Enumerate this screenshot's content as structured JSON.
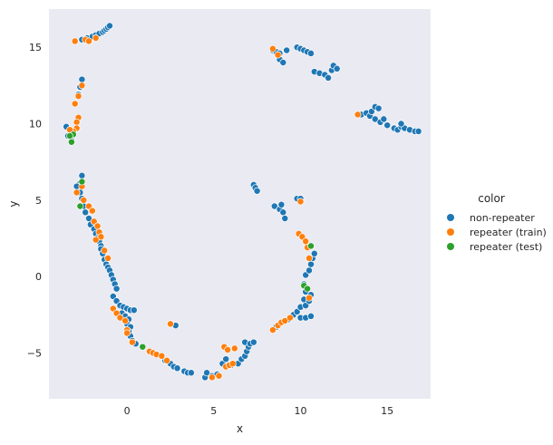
{
  "chart_data": {
    "type": "scatter",
    "xlabel": "x",
    "ylabel": "y",
    "xlim": [
      -4.5,
      17.5
    ],
    "ylim": [
      -8.0,
      17.5
    ],
    "xticks": [
      0,
      5,
      10,
      15
    ],
    "yticks": [
      -5,
      0,
      5,
      10,
      15
    ],
    "grid": false,
    "background": "#eaeaf2",
    "legend": {
      "title": "color",
      "placement": "outside-right",
      "entries": [
        "non-repeater",
        "repeater (train)",
        "repeater (test)"
      ]
    },
    "series": [
      {
        "name": "non-repeater",
        "color": "#1f77b4",
        "points": [
          [
            -2.6,
            15.5
          ],
          [
            -2.3,
            15.6
          ],
          [
            -2.0,
            15.7
          ],
          [
            -1.8,
            15.8
          ],
          [
            -1.6,
            15.9
          ],
          [
            -1.4,
            16.0
          ],
          [
            -1.3,
            16.1
          ],
          [
            -1.2,
            16.2
          ],
          [
            -1.1,
            16.3
          ],
          [
            -1.0,
            16.4
          ],
          [
            -2.6,
            12.9
          ],
          [
            -2.7,
            12.4
          ],
          [
            -2.8,
            11.9
          ],
          [
            -3.5,
            9.8
          ],
          [
            -3.4,
            9.2
          ],
          [
            -3.2,
            8.9
          ],
          [
            -2.6,
            6.6
          ],
          [
            -2.7,
            6.1
          ],
          [
            -2.9,
            5.9
          ],
          [
            -2.7,
            5.5
          ],
          [
            -2.6,
            5.1
          ],
          [
            -2.5,
            4.6
          ],
          [
            -2.4,
            4.2
          ],
          [
            -2.2,
            3.8
          ],
          [
            -2.1,
            3.4
          ],
          [
            -1.9,
            3.1
          ],
          [
            -1.8,
            2.8
          ],
          [
            -1.7,
            2.5
          ],
          [
            -1.6,
            2.3
          ],
          [
            -1.5,
            2.0
          ],
          [
            -1.5,
            1.8
          ],
          [
            -1.4,
            1.5
          ],
          [
            -1.3,
            1.1
          ],
          [
            -1.2,
            0.8
          ],
          [
            -1.1,
            0.6
          ],
          [
            -1.0,
            0.4
          ],
          [
            -0.9,
            0.1
          ],
          [
            -0.8,
            -0.2
          ],
          [
            -0.7,
            -0.5
          ],
          [
            -0.6,
            -0.8
          ],
          [
            -0.8,
            -1.3
          ],
          [
            -0.6,
            -1.6
          ],
          [
            -0.4,
            -1.9
          ],
          [
            -0.2,
            -2.0
          ],
          [
            0.0,
            -2.1
          ],
          [
            0.2,
            -2.2
          ],
          [
            0.4,
            -2.2
          ],
          [
            -0.3,
            -2.4
          ],
          [
            -0.1,
            -2.6
          ],
          [
            0.1,
            -2.8
          ],
          [
            0.0,
            -3.1
          ],
          [
            0.2,
            -3.3
          ],
          [
            0.1,
            -3.6
          ],
          [
            0.2,
            -3.9
          ],
          [
            0.3,
            -4.2
          ],
          [
            0.5,
            -4.4
          ],
          [
            2.2,
            -5.5
          ],
          [
            2.5,
            -5.7
          ],
          [
            2.7,
            -5.9
          ],
          [
            2.9,
            -6.0
          ],
          [
            3.3,
            -6.2
          ],
          [
            3.5,
            -6.3
          ],
          [
            3.7,
            -6.3
          ],
          [
            2.8,
            -3.2
          ],
          [
            4.5,
            -6.6
          ],
          [
            4.6,
            -6.3
          ],
          [
            4.9,
            -6.5
          ],
          [
            5.2,
            -6.4
          ],
          [
            5.5,
            -5.7
          ],
          [
            5.7,
            -5.4
          ],
          [
            6.0,
            -5.8
          ],
          [
            6.4,
            -5.7
          ],
          [
            6.6,
            -5.4
          ],
          [
            6.8,
            -5.2
          ],
          [
            6.9,
            -4.9
          ],
          [
            7.0,
            -4.6
          ],
          [
            6.8,
            -4.3
          ],
          [
            7.1,
            -4.4
          ],
          [
            7.3,
            -4.3
          ],
          [
            8.4,
            -3.5
          ],
          [
            8.6,
            -3.3
          ],
          [
            9.3,
            -2.8
          ],
          [
            9.6,
            -2.5
          ],
          [
            9.8,
            -2.3
          ],
          [
            10.0,
            -2.0
          ],
          [
            10.2,
            -1.5
          ],
          [
            10.3,
            -1.0
          ],
          [
            10.2,
            -0.5
          ],
          [
            10.3,
            0.1
          ],
          [
            10.5,
            0.4
          ],
          [
            10.6,
            0.8
          ],
          [
            10.7,
            1.2
          ],
          [
            10.8,
            1.5
          ],
          [
            10.0,
            -2.7
          ],
          [
            10.3,
            -2.7
          ],
          [
            10.6,
            -2.6
          ],
          [
            10.3,
            -1.9
          ],
          [
            10.5,
            -1.6
          ],
          [
            10.6,
            -1.2
          ],
          [
            7.3,
            6.0
          ],
          [
            7.4,
            5.8
          ],
          [
            7.5,
            5.6
          ],
          [
            8.5,
            4.6
          ],
          [
            8.8,
            4.4
          ],
          [
            8.9,
            4.7
          ],
          [
            9.0,
            4.2
          ],
          [
            9.1,
            3.8
          ],
          [
            9.8,
            5.1
          ],
          [
            10.0,
            5.1
          ],
          [
            8.4,
            14.8
          ],
          [
            8.6,
            14.7
          ],
          [
            8.8,
            14.6
          ],
          [
            8.8,
            14.2
          ],
          [
            9.0,
            14.0
          ],
          [
            9.2,
            14.8
          ],
          [
            9.8,
            15.0
          ],
          [
            10.0,
            14.9
          ],
          [
            10.2,
            14.8
          ],
          [
            10.4,
            14.7
          ],
          [
            10.6,
            14.6
          ],
          [
            10.8,
            13.4
          ],
          [
            11.1,
            13.3
          ],
          [
            11.4,
            13.2
          ],
          [
            11.6,
            13.0
          ],
          [
            11.8,
            13.5
          ],
          [
            11.9,
            13.8
          ],
          [
            12.1,
            13.6
          ],
          [
            13.5,
            10.6
          ],
          [
            13.8,
            10.7
          ],
          [
            14.0,
            10.5
          ],
          [
            14.1,
            10.8
          ],
          [
            14.3,
            11.1
          ],
          [
            14.5,
            11.0
          ],
          [
            14.3,
            10.3
          ],
          [
            14.6,
            10.1
          ],
          [
            15.0,
            9.9
          ],
          [
            15.4,
            9.7
          ],
          [
            15.6,
            9.6
          ],
          [
            15.8,
            9.8
          ],
          [
            16.0,
            9.7
          ],
          [
            16.3,
            9.6
          ],
          [
            16.6,
            9.5
          ],
          [
            16.8,
            9.5
          ],
          [
            15.8,
            10.0
          ],
          [
            14.8,
            10.3
          ]
        ]
      },
      {
        "name": "repeater (train)",
        "color": "#ff7f0e",
        "points": [
          [
            -3.0,
            15.4
          ],
          [
            -2.4,
            15.5
          ],
          [
            -1.8,
            15.6
          ],
          [
            -2.2,
            15.4
          ],
          [
            -2.6,
            12.5
          ],
          [
            -2.8,
            11.8
          ],
          [
            -3.0,
            11.3
          ],
          [
            -2.8,
            10.4
          ],
          [
            -2.9,
            10.1
          ],
          [
            -2.9,
            9.7
          ],
          [
            -3.1,
            9.5
          ],
          [
            -3.3,
            9.6
          ],
          [
            -2.9,
            5.5
          ],
          [
            -2.6,
            5.9
          ],
          [
            -2.5,
            5.0
          ],
          [
            -2.2,
            4.6
          ],
          [
            -2.0,
            4.3
          ],
          [
            -1.9,
            3.6
          ],
          [
            -1.7,
            3.3
          ],
          [
            -1.6,
            2.9
          ],
          [
            -1.5,
            2.6
          ],
          [
            -1.8,
            2.4
          ],
          [
            -1.3,
            1.7
          ],
          [
            -1.1,
            1.2
          ],
          [
            -0.8,
            -2.1
          ],
          [
            -0.6,
            -2.4
          ],
          [
            -0.4,
            -2.7
          ],
          [
            -0.1,
            -2.9
          ],
          [
            0.0,
            -3.5
          ],
          [
            0.0,
            -3.7
          ],
          [
            0.3,
            -4.3
          ],
          [
            1.3,
            -4.9
          ],
          [
            1.5,
            -5.0
          ],
          [
            1.7,
            -5.1
          ],
          [
            2.0,
            -5.2
          ],
          [
            2.3,
            -5.5
          ],
          [
            2.5,
            -3.1
          ],
          [
            4.9,
            -6.6
          ],
          [
            5.3,
            -6.5
          ],
          [
            5.6,
            -4.6
          ],
          [
            5.8,
            -4.8
          ],
          [
            6.2,
            -4.7
          ],
          [
            5.7,
            -5.9
          ],
          [
            5.9,
            -5.8
          ],
          [
            6.1,
            -5.7
          ],
          [
            8.4,
            -3.5
          ],
          [
            8.7,
            -3.2
          ],
          [
            8.9,
            -3.0
          ],
          [
            9.1,
            -2.9
          ],
          [
            9.4,
            -2.7
          ],
          [
            9.9,
            2.8
          ],
          [
            10.1,
            2.6
          ],
          [
            10.3,
            2.3
          ],
          [
            10.4,
            1.9
          ],
          [
            10.5,
            1.2
          ],
          [
            10.5,
            -1.4
          ],
          [
            10.0,
            4.9
          ],
          [
            8.4,
            14.9
          ],
          [
            8.7,
            14.5
          ],
          [
            13.3,
            10.6
          ]
        ]
      },
      {
        "name": "repeater (test)",
        "color": "#2ca02c",
        "points": [
          [
            -3.1,
            9.3
          ],
          [
            -3.3,
            9.2
          ],
          [
            -3.2,
            8.8
          ],
          [
            -2.7,
            4.6
          ],
          [
            -2.6,
            6.2
          ],
          [
            0.9,
            -4.6
          ],
          [
            10.2,
            -0.6
          ],
          [
            10.4,
            -0.8
          ],
          [
            10.6,
            2.0
          ]
        ]
      }
    ]
  }
}
